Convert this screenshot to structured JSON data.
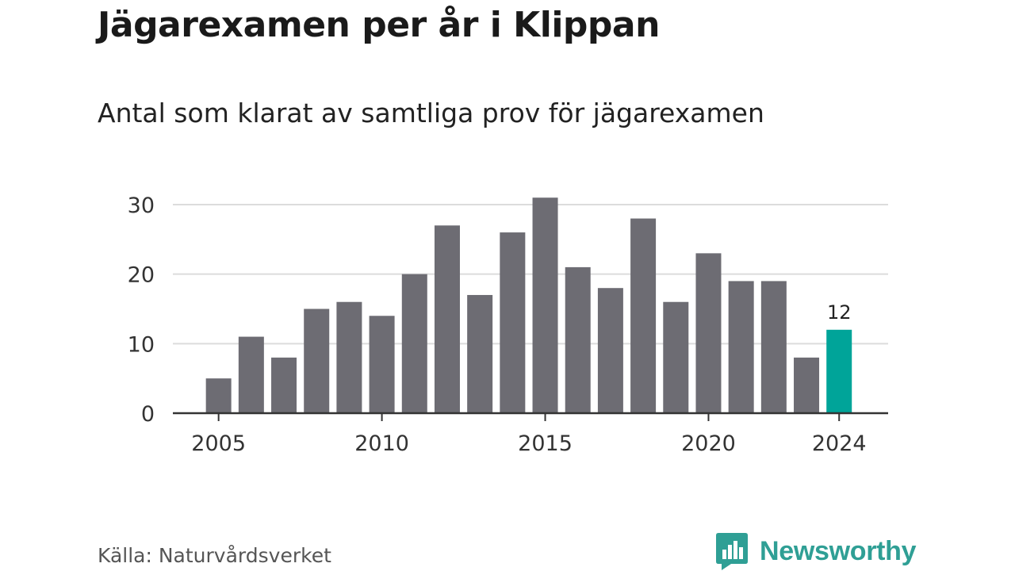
{
  "title": "Jägarexamen per år i Klippan",
  "subtitle": "Antal som klarat av samtliga prov för jägarexamen",
  "source": "Källa: Naturvårdsverket",
  "brand": {
    "name": "Newsworthy",
    "icon": "newsworthy-logo-icon",
    "color": "#2f9f95"
  },
  "chart_data": {
    "type": "bar",
    "title": "Jägarexamen per år i Klippan",
    "subtitle": "Antal som klarat av samtliga prov för jägarexamen",
    "xlabel": "",
    "ylabel": "",
    "ylim": [
      0,
      30
    ],
    "yticks": [
      0,
      10,
      20,
      30
    ],
    "xticks": [
      2005,
      2010,
      2015,
      2020,
      2024
    ],
    "grid": true,
    "x": [
      2005,
      2006,
      2007,
      2008,
      2009,
      2010,
      2011,
      2012,
      2013,
      2014,
      2015,
      2016,
      2017,
      2018,
      2019,
      2020,
      2021,
      2022,
      2023,
      2024
    ],
    "values": [
      5,
      11,
      8,
      15,
      16,
      14,
      20,
      27,
      17,
      26,
      31,
      21,
      18,
      28,
      16,
      23,
      19,
      19,
      8,
      12
    ],
    "highlight": {
      "x": 2024,
      "label": "12"
    },
    "colors": {
      "bar": "#6d6c73",
      "highlight": "#00a499",
      "grid": "#dcdcdc",
      "axis": "#333333"
    }
  }
}
